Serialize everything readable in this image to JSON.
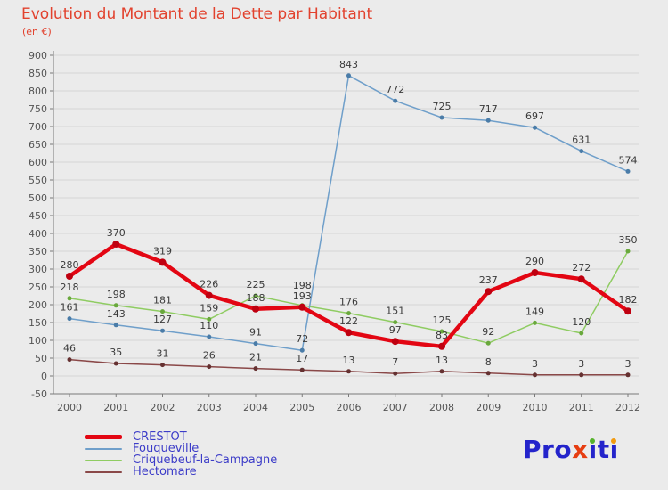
{
  "title": "Evolution du Montant de la Dette par Habitant",
  "subtitle": "(en €)",
  "colors": {
    "title": "#e2422e",
    "subtitle": "#e2422e",
    "background": "#ebebeb",
    "grid": "#d4d4d4",
    "axis": "#7a7a7a",
    "tick_label": "#555555",
    "point_label": "#3a3a3a",
    "legend_text": "#3c3cc8"
  },
  "chart_data": {
    "type": "line",
    "title": "Evolution du Montant de la Dette par Habitant",
    "subtitle": "(en €)",
    "x": [
      2000,
      2001,
      2002,
      2003,
      2004,
      2005,
      2006,
      2007,
      2008,
      2009,
      2010,
      2011,
      2012
    ],
    "ylim": [
      -50,
      900
    ],
    "ytick_step": 50,
    "grid": "horizontal",
    "legend_position": "bottom-left",
    "series": [
      {
        "name": "CRESTOT",
        "color": "#e30613",
        "dot_color": "#bf0010",
        "line_width": 4.5,
        "values": [
          280,
          370,
          319,
          226,
          188,
          193,
          122,
          97,
          83,
          237,
          290,
          272,
          182
        ]
      },
      {
        "name": "Fouqueville",
        "color": "#6f9fca",
        "dot_color": "#4a7ca8",
        "line_width": 1.5,
        "values": [
          161,
          143,
          127,
          110,
          91,
          72,
          843,
          772,
          725,
          717,
          697,
          631,
          574
        ]
      },
      {
        "name": "Criquebeuf-la-Campagne",
        "color": "#8fcc62",
        "dot_color": "#69a83c",
        "line_width": 1.5,
        "values": [
          218,
          198,
          181,
          159,
          225,
          198,
          176,
          151,
          125,
          92,
          149,
          120,
          350
        ]
      },
      {
        "name": "Hectomare",
        "color": "#8a4848",
        "dot_color": "#653131",
        "line_width": 1.5,
        "values": [
          46,
          35,
          31,
          26,
          21,
          17,
          13,
          7,
          13,
          8,
          3,
          3,
          3
        ]
      }
    ]
  },
  "logo": {
    "pro": "Pro",
    "x": "x",
    "i1": "ı",
    "t": "t",
    "i2": "ı",
    "blue": "#2424cb",
    "red": "#e63d11",
    "dot_green": "#56b32b",
    "dot_orange": "#f29a0e"
  }
}
